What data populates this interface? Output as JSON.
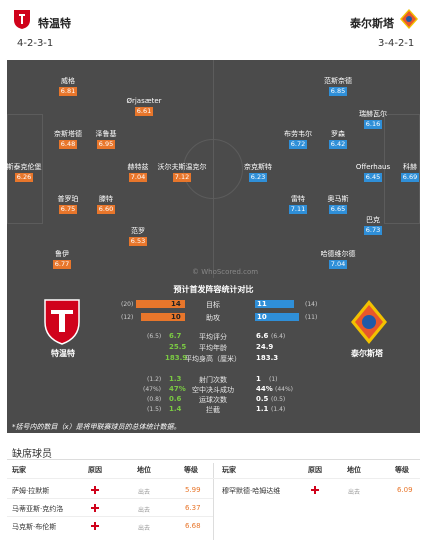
{
  "home": {
    "name": "特温特",
    "formation": "4-2-3-1"
  },
  "away": {
    "name": "泰尔斯塔",
    "formation": "3-4-2-1"
  },
  "watermark": "© WhoScored.com",
  "home_players": [
    {
      "name": "威格",
      "rating": "6.81"
    },
    {
      "name": "Ørjasæter",
      "rating": "6.61"
    },
    {
      "name": "奈斯塔德",
      "rating": "6.48"
    },
    {
      "name": "泽鲁基",
      "rating": "6.95"
    },
    {
      "name": "斯泰克伦堡",
      "rating": "6.26"
    },
    {
      "name": "赫特兹",
      "rating": "7.04"
    },
    {
      "name": "沃尔夫斯温克尔",
      "rating": "7.12"
    },
    {
      "name": "普罗珀",
      "rating": "6.75"
    },
    {
      "name": "滕特",
      "rating": "6.60"
    },
    {
      "name": "范罗",
      "rating": "6.53"
    },
    {
      "name": "鲁伊",
      "rating": "6.77"
    }
  ],
  "away_players": [
    {
      "name": "范斯奈德",
      "rating": "6.85"
    },
    {
      "name": "瑞赫瓦尔",
      "rating": "6.16"
    },
    {
      "name": "布劳韦尔",
      "rating": "6.72"
    },
    {
      "name": "罗森",
      "rating": "6.42"
    },
    {
      "name": "奈克斯特",
      "rating": "6.23"
    },
    {
      "name": "Offerhaus",
      "rating": "6.45"
    },
    {
      "name": "科赫",
      "rating": "6.69"
    },
    {
      "name": "雷特",
      "rating": "7.11"
    },
    {
      "name": "奥马斯",
      "rating": "6.65"
    },
    {
      "name": "巴克",
      "rating": "6.73"
    },
    {
      "name": "哈德维尔德",
      "rating": "7.04"
    }
  ],
  "stats": {
    "title": "预计首发阵容统计对比",
    "bars": [
      {
        "label": "目标",
        "home": "14",
        "home_prev": "(20)",
        "away": "11",
        "away_prev": "(14)",
        "home_frac": 0.56,
        "away_frac": 0.44
      },
      {
        "label": "助攻",
        "home": "10",
        "home_prev": "(12)",
        "away": "10",
        "away_prev": "(11)",
        "home_frac": 0.5,
        "away_frac": 0.5
      }
    ],
    "rows1": [
      {
        "label": "平均评分",
        "home": "6.7",
        "home_prev": "(6.5)",
        "away": "6.6",
        "away_prev": "(6.4)"
      },
      {
        "label": "平均年龄",
        "home": "25.5",
        "home_prev": "",
        "away": "24.9",
        "away_prev": ""
      },
      {
        "label": "平均身高（厘米）",
        "home": "183.9",
        "home_prev": "",
        "away": "183.3",
        "away_prev": ""
      }
    ],
    "rows2": [
      {
        "label": "射门次数",
        "home": "1.3",
        "home_prev": "(1.2)",
        "away": "1",
        "away_prev": "(1)"
      },
      {
        "label": "空中决斗成功",
        "home": "47%",
        "home_prev": "(47%)",
        "away": "44%",
        "away_prev": "(44%)"
      },
      {
        "label": "运球次数",
        "home": "0.6",
        "home_prev": "(0.8)",
        "away": "0.5",
        "away_prev": "(0.5)"
      },
      {
        "label": "拦截",
        "home": "1.4",
        "home_prev": "(1.5)",
        "away": "1.1",
        "away_prev": "(1.4)"
      }
    ],
    "note": "*括号内的数目（x）是将甲联赛球员的总体统计数据。"
  },
  "absent": {
    "title": "缺席球员",
    "headers": {
      "player": "玩家",
      "reason": "原因",
      "status": "地位",
      "rating": "等级"
    },
    "home": [
      {
        "player": "萨姆·拉默斯",
        "status": "出去",
        "rating": "5.99"
      },
      {
        "player": "马蒂亚斯·克约洛",
        "status": "出去",
        "rating": "6.37"
      },
      {
        "player": "马克斯·布伦斯",
        "status": "出去",
        "rating": "6.68"
      }
    ],
    "away": [
      {
        "player": "穆罕默德·哈姆达维",
        "status": "出去",
        "rating": "6.09"
      }
    ]
  },
  "colors": {
    "home_rating": "#e8762b",
    "away_rating": "#2f8fd8",
    "pitch": "#4b4b4b",
    "home_bar": "#e8762b",
    "away_bar": "#2f8fd8"
  }
}
